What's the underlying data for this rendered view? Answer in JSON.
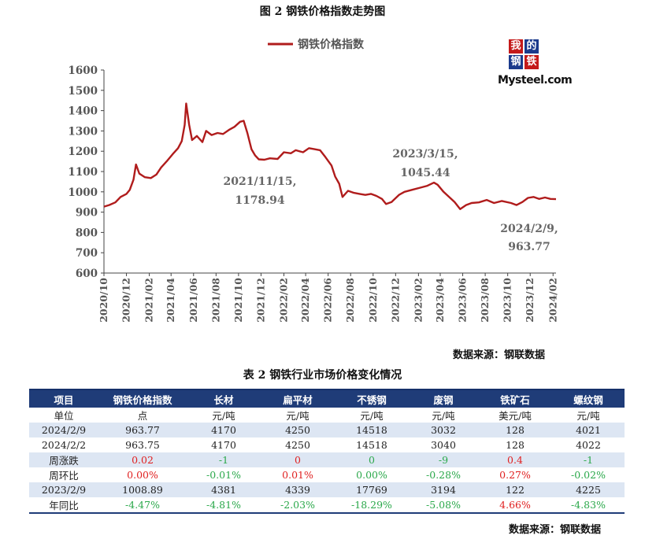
{
  "figure_title": "图 2 钢铁价格指数走势图",
  "chart_source": "数据来源：钢联数据",
  "logo": {
    "chars": [
      "我",
      "的",
      "钢",
      "铁"
    ],
    "word": "Mysteel.com"
  },
  "colors": {
    "line": "#b01c1c",
    "header_bg": "#1f3c78",
    "row_shade": "#dde6f3",
    "up": "#e02020",
    "down": "#2aa84a"
  },
  "chart_data": {
    "type": "line",
    "title": "图 2 钢铁价格指数走势图",
    "xlabel": "",
    "ylabel": "",
    "ylim": [
      600,
      1600
    ],
    "yticks": [
      600,
      700,
      800,
      900,
      1000,
      1100,
      1200,
      1300,
      1400,
      1500,
      1600
    ],
    "xlim": [
      "2020-10-01",
      "2024-02-09"
    ],
    "xticks": [
      "2020/10",
      "2020/12",
      "2021/02",
      "2021/04",
      "2021/06",
      "2021/08",
      "2021/10",
      "2021/12",
      "2022/02",
      "2022/04",
      "2022/06",
      "2022/08",
      "2022/10",
      "2022/12",
      "2023/02",
      "2023/04",
      "2023/06",
      "2023/08",
      "2023/10",
      "2023/12",
      "2024/02"
    ],
    "grid": false,
    "legend": "top-center",
    "series": [
      {
        "name": "钢铁价格指数",
        "points": [
          [
            "2020-10-01",
            927
          ],
          [
            "2020-10-15",
            935
          ],
          [
            "2020-11-01",
            948
          ],
          [
            "2020-11-15",
            975
          ],
          [
            "2020-12-01",
            990
          ],
          [
            "2020-12-10",
            1010
          ],
          [
            "2020-12-20",
            1060
          ],
          [
            "2020-12-27",
            1135
          ],
          [
            "2021-01-05",
            1090
          ],
          [
            "2021-01-20",
            1072
          ],
          [
            "2021-02-05",
            1068
          ],
          [
            "2021-02-20",
            1085
          ],
          [
            "2021-03-05",
            1120
          ],
          [
            "2021-03-20",
            1150
          ],
          [
            "2021-04-05",
            1185
          ],
          [
            "2021-04-20",
            1215
          ],
          [
            "2021-04-30",
            1250
          ],
          [
            "2021-05-08",
            1330
          ],
          [
            "2021-05-12",
            1435
          ],
          [
            "2021-05-20",
            1330
          ],
          [
            "2021-05-28",
            1255
          ],
          [
            "2021-06-10",
            1275
          ],
          [
            "2021-06-25",
            1245
          ],
          [
            "2021-07-05",
            1300
          ],
          [
            "2021-07-20",
            1280
          ],
          [
            "2021-08-05",
            1290
          ],
          [
            "2021-08-20",
            1285
          ],
          [
            "2021-09-05",
            1305
          ],
          [
            "2021-09-20",
            1320
          ],
          [
            "2021-10-05",
            1345
          ],
          [
            "2021-10-15",
            1350
          ],
          [
            "2021-10-25",
            1290
          ],
          [
            "2021-11-05",
            1210
          ],
          [
            "2021-11-15",
            1178.94
          ],
          [
            "2021-11-25",
            1160
          ],
          [
            "2021-12-10",
            1158
          ],
          [
            "2021-12-25",
            1165
          ],
          [
            "2022-01-15",
            1162
          ],
          [
            "2022-02-01",
            1195
          ],
          [
            "2022-02-20",
            1190
          ],
          [
            "2022-03-05",
            1205
          ],
          [
            "2022-03-25",
            1195
          ],
          [
            "2022-04-10",
            1215
          ],
          [
            "2022-04-25",
            1210
          ],
          [
            "2022-05-10",
            1205
          ],
          [
            "2022-05-25",
            1170
          ],
          [
            "2022-06-10",
            1130
          ],
          [
            "2022-06-20",
            1075
          ],
          [
            "2022-07-01",
            1040
          ],
          [
            "2022-07-10",
            975
          ],
          [
            "2022-07-25",
            1005
          ],
          [
            "2022-08-10",
            995
          ],
          [
            "2022-08-25",
            990
          ],
          [
            "2022-09-10",
            985
          ],
          [
            "2022-09-25",
            990
          ],
          [
            "2022-10-10",
            980
          ],
          [
            "2022-10-25",
            965
          ],
          [
            "2022-11-05",
            940
          ],
          [
            "2022-11-20",
            950
          ],
          [
            "2022-12-10",
            985
          ],
          [
            "2022-12-25",
            1000
          ],
          [
            "2023-01-15",
            1010
          ],
          [
            "2023-02-05",
            1020
          ],
          [
            "2023-02-25",
            1030
          ],
          [
            "2023-03-15",
            1045.44
          ],
          [
            "2023-03-25",
            1035
          ],
          [
            "2023-04-10",
            1000
          ],
          [
            "2023-04-25",
            975
          ],
          [
            "2023-05-10",
            950
          ],
          [
            "2023-05-25",
            915
          ],
          [
            "2023-06-10",
            935
          ],
          [
            "2023-06-25",
            945
          ],
          [
            "2023-07-15",
            948
          ],
          [
            "2023-08-05",
            960
          ],
          [
            "2023-08-25",
            945
          ],
          [
            "2023-09-15",
            955
          ],
          [
            "2023-10-10",
            945
          ],
          [
            "2023-10-25",
            935
          ],
          [
            "2023-11-10",
            950
          ],
          [
            "2023-11-25",
            970
          ],
          [
            "2023-12-10",
            975
          ],
          [
            "2023-12-25",
            965
          ],
          [
            "2024-01-10",
            972
          ],
          [
            "2024-01-25",
            965
          ],
          [
            "2024-02-09",
            963.77
          ]
        ]
      }
    ],
    "annotations": [
      {
        "date": "2021/11/15,",
        "value": "1178.94"
      },
      {
        "date": "2023/3/15,",
        "value": "1045.44"
      },
      {
        "date": "2024/2/9,",
        "value": "963.77"
      }
    ]
  },
  "table": {
    "title": "表 2 钢铁行业市场价格变化情况",
    "headers": [
      "项目",
      "钢铁价格指数",
      "长材",
      "扁平材",
      "不锈钢",
      "废钢",
      "铁矿石",
      "螺纹钢"
    ],
    "rows": [
      {
        "cells": [
          "单位",
          "点",
          "元/吨",
          "元/吨",
          "元/吨",
          "元/吨",
          "美元/吨",
          "元/吨"
        ],
        "signs": [
          "",
          "",
          "",
          "",
          "",
          "",
          "",
          ""
        ]
      },
      {
        "cells": [
          "2024/2/9",
          "963.77",
          "4170",
          "4250",
          "14518",
          "3032",
          "128",
          "4021"
        ],
        "signs": [
          "",
          "",
          "",
          "",
          "",
          "",
          "",
          ""
        ]
      },
      {
        "cells": [
          "2024/2/2",
          "963.75",
          "4170",
          "4250",
          "14518",
          "3040",
          "128",
          "4022"
        ],
        "signs": [
          "",
          "",
          "",
          "",
          "",
          "",
          "",
          ""
        ]
      },
      {
        "cells": [
          "周涨跌",
          "0.02",
          "-1",
          "0",
          "0",
          "-9",
          "0.4",
          "-1"
        ],
        "signs": [
          "",
          "pos",
          "neg",
          "pos",
          "neg",
          "neg",
          "pos",
          "neg"
        ]
      },
      {
        "cells": [
          "周环比",
          "0.00%",
          "-0.01%",
          "0.01%",
          "0.00%",
          "-0.28%",
          "0.27%",
          "-0.02%"
        ],
        "signs": [
          "",
          "pos",
          "neg",
          "pos",
          "neg",
          "neg",
          "pos",
          "neg"
        ]
      },
      {
        "cells": [
          "2023/2/9",
          "1008.89",
          "4381",
          "4339",
          "17769",
          "3194",
          "122",
          "4225"
        ],
        "signs": [
          "",
          "",
          "",
          "",
          "",
          "",
          "",
          ""
        ]
      },
      {
        "cells": [
          "年同比",
          "-4.47%",
          "-4.81%",
          "-2.03%",
          "-18.29%",
          "-5.08%",
          "4.66%",
          "-4.83%"
        ],
        "signs": [
          "",
          "neg",
          "neg",
          "neg",
          "neg",
          "neg",
          "pos",
          "neg"
        ]
      }
    ]
  },
  "table_source": "数据来源：钢联数据"
}
